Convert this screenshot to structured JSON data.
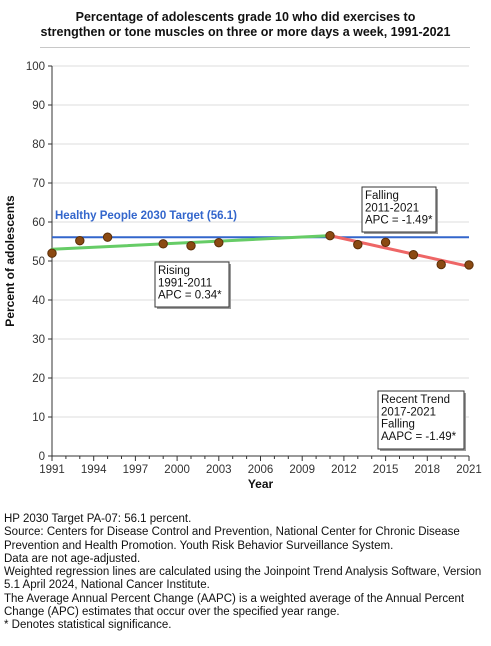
{
  "chart_data": {
    "type": "line",
    "title": "Percentage of adolescents grade 10 who did exercises to\nstrengthen or tone muscles on three or more days a week, 1991-2021",
    "xlabel": "Year",
    "ylabel": "Percent of adolescents",
    "xlim": [
      1991,
      2021
    ],
    "ylim": [
      0,
      100
    ],
    "x_ticks": [
      1991,
      1994,
      1997,
      2000,
      2003,
      2006,
      2009,
      2012,
      2015,
      2018,
      2021
    ],
    "y_ticks": [
      0,
      10,
      20,
      30,
      40,
      50,
      60,
      70,
      80,
      90,
      100
    ],
    "grid": "horizontal",
    "points": {
      "x": [
        1991,
        1993,
        1995,
        1999,
        2001,
        2003,
        2011,
        2013,
        2015,
        2017,
        2019,
        2021
      ],
      "y": [
        52.0,
        55.2,
        56.1,
        54.4,
        53.9,
        54.7,
        56.5,
        54.2,
        54.8,
        51.6,
        49.1,
        49.0
      ]
    },
    "trend_segments": [
      {
        "x": [
          1991,
          2011
        ],
        "y": [
          53.0,
          56.5
        ],
        "color": "#66cc66"
      },
      {
        "x": [
          2011,
          2021
        ],
        "y": [
          56.5,
          48.6
        ],
        "color": "#ee6666"
      }
    ],
    "target": {
      "value": 56.1,
      "label": "Healthy People 2030 Target (56.1)",
      "color": "#3366cc"
    },
    "annotations": [
      {
        "lines": [
          "Rising",
          "1991-2011",
          "APC =  0.34*"
        ]
      },
      {
        "lines": [
          "Falling",
          "2011-2021",
          "APC = -1.49*"
        ]
      },
      {
        "lines": [
          "Recent Trend",
          "2017-2021",
          "Falling",
          "AAPC = -1.49*"
        ]
      }
    ],
    "colors": {
      "point_fill": "#8b4a12",
      "point_stroke": "#5a2e08",
      "axis": "#333333",
      "grid": "#dddddd"
    }
  },
  "notes": [
    "HP 2030 Target PA-07: 56.1 percent.",
    "Source: Centers for Disease Control and Prevention, National Center for Chronic Disease Prevention and Health Promotion. Youth Risk Behavior Surveillance System.",
    "Data are not age-adjusted.",
    "Weighted regression lines are calculated using the Joinpoint Trend Analysis Software, Version 5.1 April 2024, National Cancer Institute.",
    "The Average Annual Percent Change (AAPC) is a weighted average of the Annual Percent Change (APC) estimates that occur over the specified year range.",
    "* Denotes statistical significance."
  ]
}
